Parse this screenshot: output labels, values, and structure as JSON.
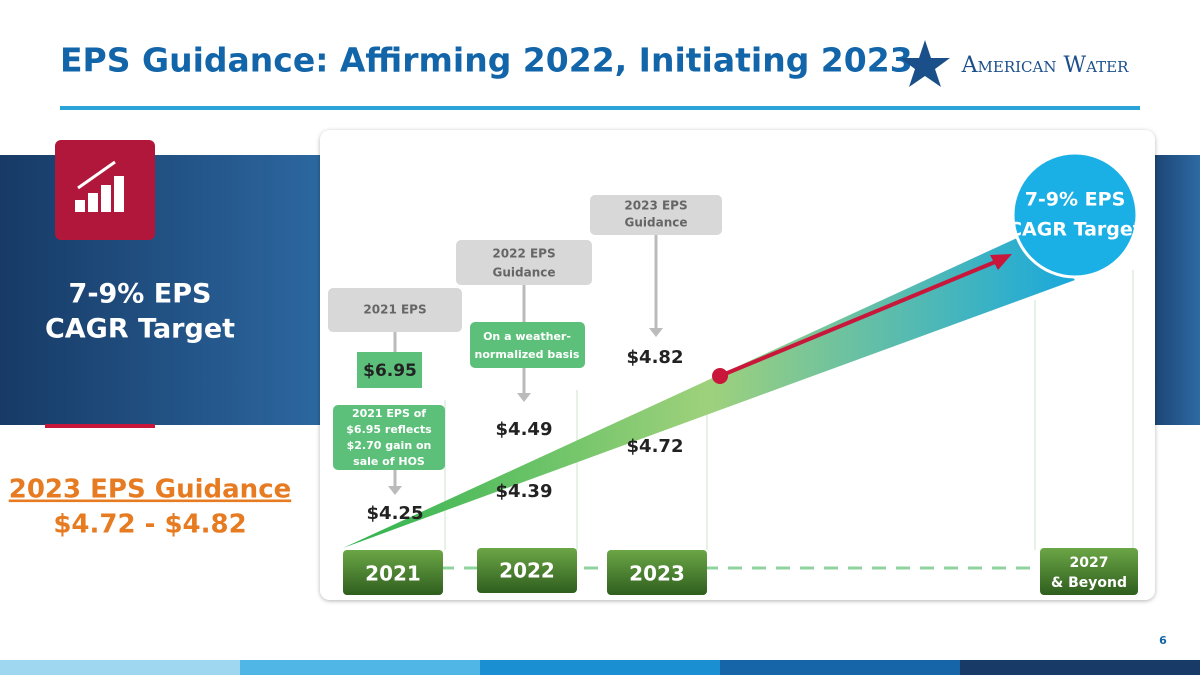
{
  "header": {
    "title": "EPS Guidance: Affirming 2022, Initiating 2023",
    "logo": "American Water"
  },
  "sidebar": {
    "target": [
      "7-9% EPS",
      "CAGR Target"
    ],
    "guidance_title": "2023 EPS Guidance",
    "guidance_range": "$4.72 - $4.82"
  },
  "callouts": {
    "eps_2021": "2021 EPS",
    "guidance_2022": [
      "2022 EPS",
      "Guidance"
    ],
    "guidance_2023": [
      "2023 EPS",
      "Guidance"
    ],
    "eps_2021_value": "$6.95",
    "weather_note": [
      "On a weather-",
      "normalized basis"
    ],
    "hos_note": [
      "2021 EPS of",
      "$6.95 reflects",
      "$2.70 gain on",
      "sale of HOS"
    ]
  },
  "values": {
    "y2021": "$4.25",
    "y2022_high": "$4.49",
    "y2022_low": "$4.39",
    "y2023_high": "$4.82",
    "y2023_low": "$4.72"
  },
  "years": {
    "y2021": "2021",
    "y2022": "2022",
    "y2023": "2023",
    "y2027": [
      "2027",
      "& Beyond"
    ]
  },
  "target_circle": [
    "7-9% EPS",
    "CAGR Target"
  ],
  "page_number": "6"
}
